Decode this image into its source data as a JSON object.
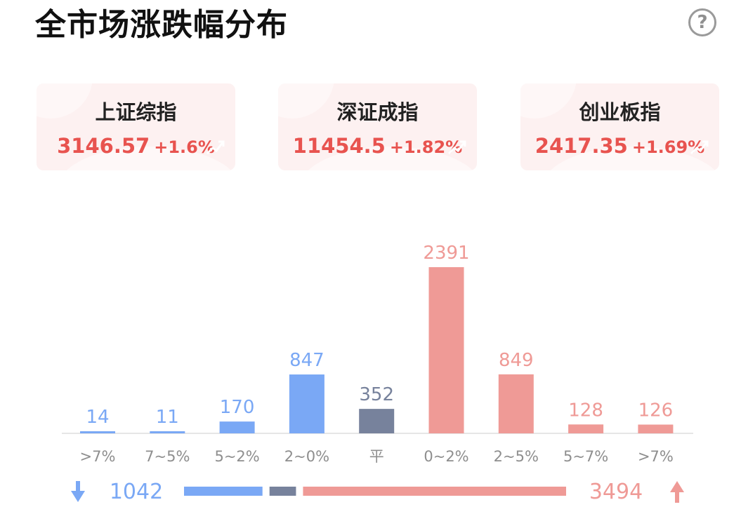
{
  "title": "全市场涨跌幅分布",
  "help_icon": "question-circle-icon",
  "cards": [
    {
      "name": "上证综指",
      "price": "3146.57",
      "change": "+1.6%"
    },
    {
      "name": "深证成指",
      "price": "11454.5",
      "change": "+1.82%"
    },
    {
      "name": "创业板指",
      "price": "2417.35",
      "change": "+1.69%"
    }
  ],
  "colors": {
    "down": "#7aa8f5",
    "flat": "#77829c",
    "up": "#ef9a96",
    "price": "#e8534f"
  },
  "chart_data": {
    "type": "bar",
    "categories": [
      ">7%",
      "7~5%",
      "5~2%",
      "2~0%",
      "平",
      "0~2%",
      "2~5%",
      "5~7%",
      ">7%"
    ],
    "values": [
      14,
      11,
      170,
      847,
      352,
      2391,
      849,
      128,
      126
    ],
    "groups": [
      "down",
      "down",
      "down",
      "down",
      "flat",
      "up",
      "up",
      "up",
      "up"
    ]
  },
  "summary": {
    "down_count": "1042",
    "up_count": "3494",
    "down_icon": "arrow-down-icon",
    "up_icon": "arrow-up-icon"
  }
}
